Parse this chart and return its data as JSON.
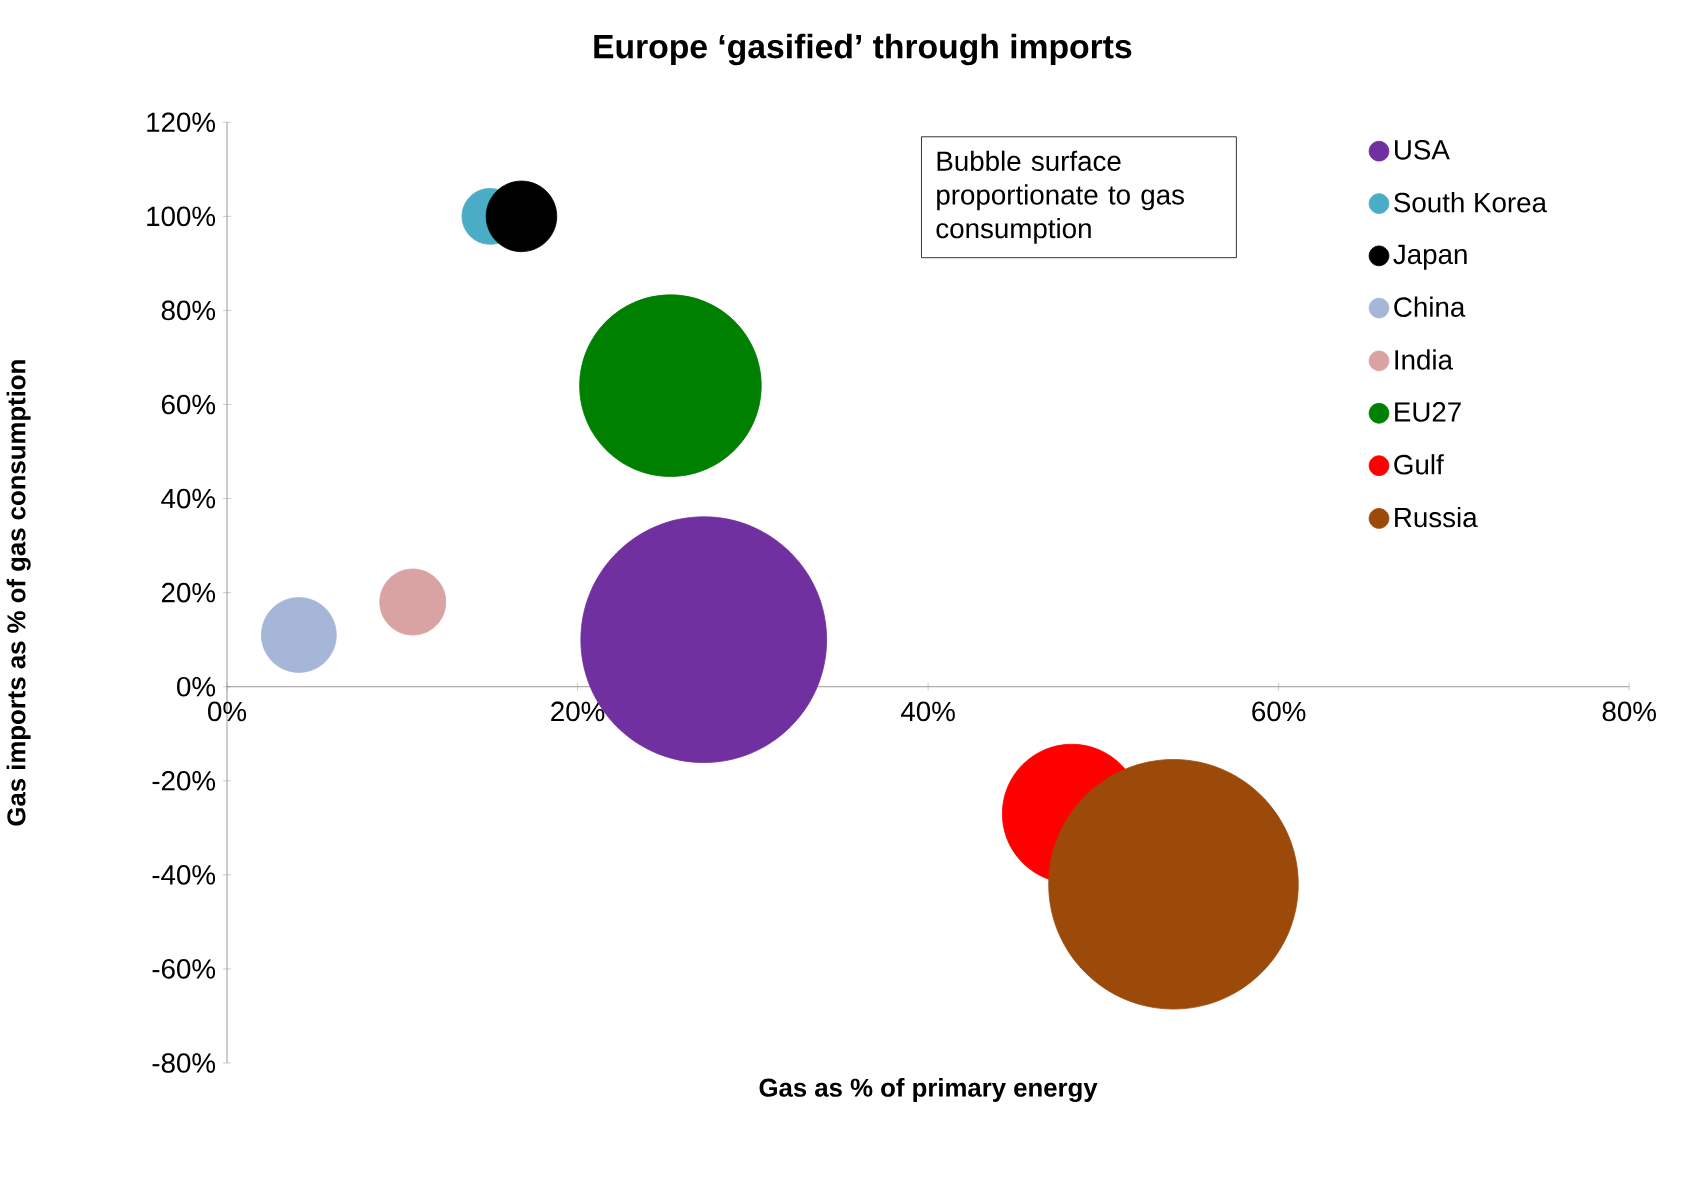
{
  "chart_data": {
    "type": "bubble",
    "title": "Europe ‘gasified’ through imports",
    "xlabel": "Gas as % of primary energy",
    "ylabel": "Gas imports as % of gas consumption",
    "xlim": [
      0,
      80
    ],
    "ylim": [
      -80,
      120
    ],
    "xticks": [
      {
        "value": 0,
        "label": "0%"
      },
      {
        "value": 20,
        "label": "20%"
      },
      {
        "value": 40,
        "label": "40%"
      },
      {
        "value": 60,
        "label": "60%"
      },
      {
        "value": 80,
        "label": "80%"
      }
    ],
    "yticks": [
      {
        "value": -80,
        "label": "-80%"
      },
      {
        "value": -60,
        "label": "-60%"
      },
      {
        "value": -40,
        "label": "-40%"
      },
      {
        "value": -20,
        "label": "-20%"
      },
      {
        "value": 0,
        "label": "0%"
      },
      {
        "value": 20,
        "label": "20%"
      },
      {
        "value": 40,
        "label": "40%"
      },
      {
        "value": 60,
        "label": "60%"
      },
      {
        "value": 80,
        "label": "80%"
      },
      {
        "value": 100,
        "label": "100%"
      },
      {
        "value": 120,
        "label": "120%"
      }
    ],
    "legend": "top right",
    "grid": false,
    "marker": "circle",
    "annotations": [
      "Bubble surface proportionate to gas consumption"
    ],
    "series": [
      {
        "name": "USA",
        "color": "#7030a0",
        "x": [
          27.2
        ],
        "values": [
          10
        ],
        "sizes": [
          0.97
        ]
      },
      {
        "name": "South Korea",
        "color": "#4bacc6",
        "x": [
          15
        ],
        "values": [
          100
        ],
        "sizes": [
          0.05
        ]
      },
      {
        "name": "Japan",
        "color": "#000000",
        "x": [
          16.8
        ],
        "values": [
          100
        ],
        "sizes": [
          0.08
        ]
      },
      {
        "name": "China",
        "color": "#a6b6d8",
        "x": [
          4.1
        ],
        "values": [
          11
        ],
        "sizes": [
          0.09
        ]
      },
      {
        "name": "India",
        "color": "#d9a3a3",
        "x": [
          10.6
        ],
        "values": [
          18
        ],
        "sizes": [
          0.07
        ]
      },
      {
        "name": "EU27",
        "color": "#008000",
        "x": [
          25.3
        ],
        "values": [
          64
        ],
        "sizes": [
          0.53
        ]
      },
      {
        "name": "Gulf",
        "color": "#ff0000",
        "x": [
          48.2
        ],
        "values": [
          -27
        ],
        "sizes": [
          0.31
        ]
      },
      {
        "name": "Russia",
        "color": "#9c4a0a",
        "x": [
          54
        ],
        "values": [
          -42
        ],
        "sizes": [
          1
        ]
      }
    ]
  }
}
